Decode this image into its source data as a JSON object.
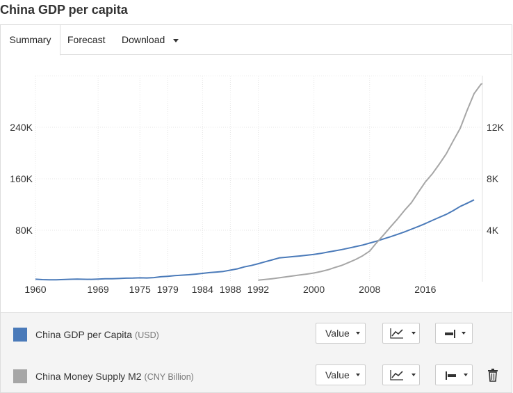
{
  "page": {
    "title": "China GDP per capita"
  },
  "tabs": [
    {
      "label": "Summary",
      "active": true
    },
    {
      "label": "Forecast",
      "active": false
    },
    {
      "label": "Download",
      "active": false,
      "has_dropdown": true
    }
  ],
  "chart_data": {
    "type": "line",
    "x_ticks": [
      "1960",
      "1969",
      "1975",
      "1979",
      "1984",
      "1988",
      "1992",
      "2000",
      "2008",
      "2016"
    ],
    "left_axis": {
      "ticks": [
        "80K",
        "160K",
        "240K"
      ],
      "range": [
        0,
        320000
      ]
    },
    "right_axis": {
      "ticks": [
        "4K",
        "8K",
        "12K"
      ],
      "range": [
        0,
        16000
      ]
    },
    "xlim": [
      1960,
      2024.2
    ],
    "grid": true,
    "series": [
      {
        "name": "China GDP per Capita",
        "unit": "USD",
        "color": "#4a7ab9",
        "axis": "right",
        "x": [
          1960,
          1961,
          1962,
          1963,
          1964,
          1965,
          1966,
          1967,
          1968,
          1969,
          1970,
          1971,
          1972,
          1973,
          1974,
          1975,
          1976,
          1977,
          1978,
          1979,
          1980,
          1981,
          1982,
          1983,
          1984,
          1985,
          1986,
          1987,
          1988,
          1989,
          1990,
          1991,
          1992,
          1993,
          1994,
          1995,
          1996,
          1997,
          1998,
          1999,
          2000,
          2001,
          2002,
          2003,
          2004,
          2005,
          2006,
          2007,
          2008,
          2009,
          2010,
          2011,
          2012,
          2013,
          2014,
          2015,
          2016,
          2017,
          2018,
          2019,
          2020,
          2021,
          2022,
          2023
        ],
        "y": [
          196,
          160,
          145,
          150,
          170,
          190,
          200,
          190,
          185,
          205,
          225,
          235,
          250,
          275,
          280,
          300,
          290,
          320,
          385,
          420,
          470,
          510,
          540,
          590,
          650,
          710,
          750,
          800,
          900,
          1000,
          1150,
          1260,
          1400,
          1550,
          1700,
          1850,
          1900,
          1950,
          2000,
          2060,
          2120,
          2200,
          2300,
          2400,
          2500,
          2610,
          2730,
          2850,
          3000,
          3150,
          3330,
          3500,
          3680,
          3870,
          4080,
          4290,
          4520,
          4760,
          5000,
          5230,
          5520,
          5850,
          6100,
          6360
        ]
      },
      {
        "name": "China Money Supply M2",
        "unit": "CNY Billion",
        "color": "#a6a6a6",
        "axis": "left",
        "x": [
          1992,
          1993,
          1994,
          1995,
          1996,
          1997,
          1998,
          1999,
          2000,
          2001,
          2002,
          2003,
          2004,
          2005,
          2006,
          2007,
          2008,
          2009,
          2010,
          2011,
          2012,
          2013,
          2014,
          2015,
          2016,
          2017,
          2018,
          2019,
          2020,
          2021,
          2022,
          2023,
          2024,
          2024.2
        ],
        "y": [
          2500,
          3500,
          4700,
          6000,
          7600,
          9100,
          10500,
          11900,
          13500,
          15800,
          18500,
          22000,
          25400,
          29900,
          34600,
          40300,
          47500,
          60600,
          72600,
          85200,
          97400,
          110700,
          122800,
          139200,
          155000,
          167700,
          182700,
          198600,
          218700,
          238300,
          266400,
          292300,
          307000,
          308000
        ]
      }
    ]
  },
  "legend": {
    "rows": [
      {
        "name": "China GDP per Capita",
        "unit": "(USD)",
        "color": "#4a7ab9",
        "value_label": "Value",
        "chart_icon": "line-chart-icon",
        "axis_icon": "axis-right-icon",
        "has_delete": false
      },
      {
        "name": "China Money Supply M2",
        "unit": "(CNY Billion)",
        "color": "#a6a6a6",
        "value_label": "Value",
        "chart_icon": "line-chart-icon",
        "axis_icon": "axis-left-icon",
        "has_delete": true
      }
    ]
  }
}
